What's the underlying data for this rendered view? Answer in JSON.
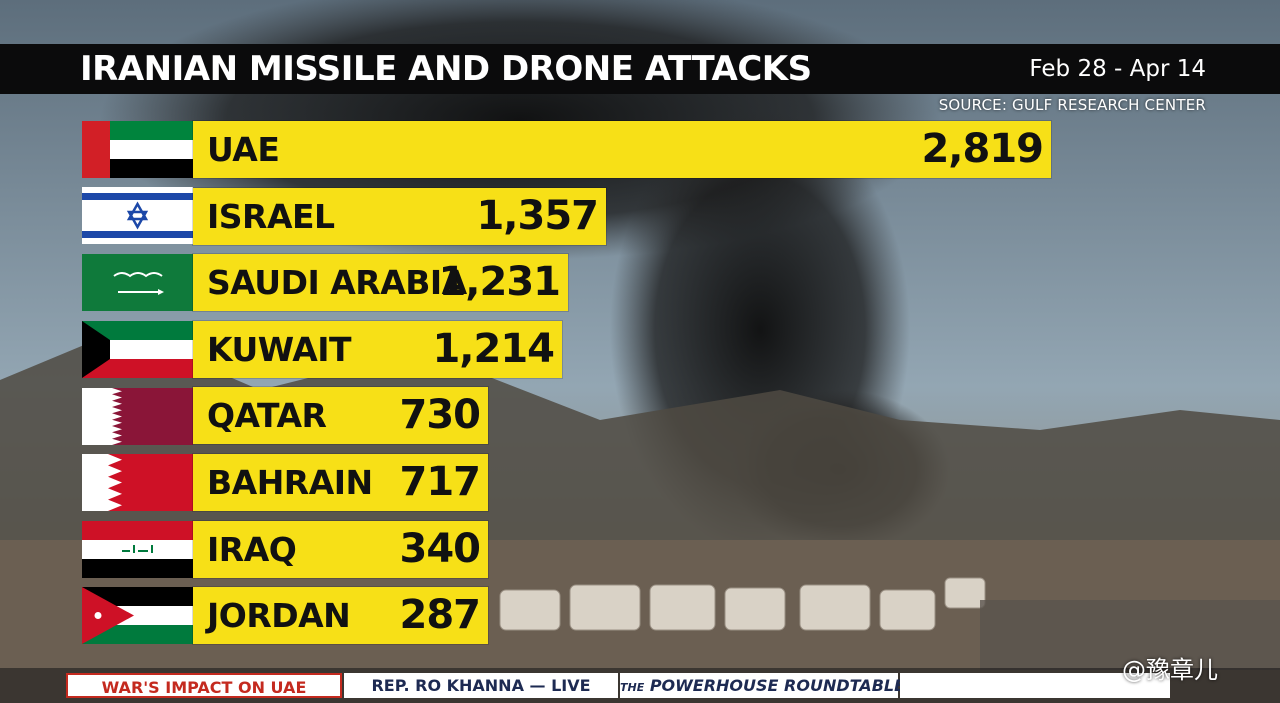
{
  "header": {
    "title": "IRANIAN MISSILE AND DRONE ATTACKS",
    "date_range": "Feb 28 - Apr 14",
    "source": "SOURCE: GULF RESEARCH CENTER"
  },
  "chart_data": {
    "type": "bar",
    "orientation": "horizontal",
    "title": "IRANIAN MISSILE AND DRONE ATTACKS",
    "xlabel": "",
    "ylabel": "",
    "categories": [
      "UAE",
      "ISRAEL",
      "SAUDI ARABIA",
      "KUWAIT",
      "QATAR",
      "BAHRAIN",
      "IRAQ",
      "JORDAN"
    ],
    "values": [
      2819,
      1357,
      1231,
      1214,
      730,
      717,
      340,
      287
    ],
    "value_labels": [
      "2,819",
      "1,357",
      "1,231",
      "1,214",
      "730",
      "717",
      "340",
      "287"
    ],
    "bar_color": "#f7e017",
    "grid": false,
    "legend": "none"
  },
  "ticker": {
    "items": [
      "WAR'S IMPACT ON UAE",
      "REP. RO KHANNA — LIVE",
      "POWERHOUSE ROUNDTABLE"
    ],
    "item_3_prefix": "THE"
  },
  "watermark": "@豫章儿",
  "colors": {
    "title_bar": "#0b0b0c",
    "bar": "#f7e017",
    "ticker_accent": "#c42a1f"
  }
}
